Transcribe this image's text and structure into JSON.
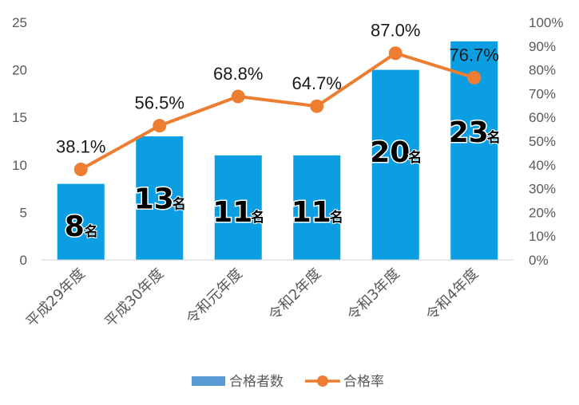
{
  "chart_data": {
    "type": "bar",
    "categories": [
      "平成29年度",
      "平成30年度",
      "令和元年度",
      "令和2年度",
      "令和3年度",
      "令和4年度"
    ],
    "series": [
      {
        "name": "合格者数",
        "type": "bar",
        "axis": "left",
        "values": [
          8,
          13,
          11,
          11,
          20,
          23
        ],
        "labels": [
          "8",
          "13",
          "11",
          "11",
          "20",
          "23"
        ],
        "unit": "名",
        "color": "#0B9EE3"
      },
      {
        "name": "合格率",
        "type": "line",
        "axis": "right",
        "values": [
          38.1,
          56.5,
          68.8,
          64.7,
          87.0,
          76.7
        ],
        "labels": [
          "38.1%",
          "56.5%",
          "68.8%",
          "64.7%",
          "87.0%",
          "76.7%"
        ],
        "color": "#ED7D31"
      }
    ],
    "y_left": {
      "min": 0,
      "max": 25,
      "ticks": [
        "0",
        "5",
        "10",
        "15",
        "20",
        "25"
      ]
    },
    "y_right": {
      "min": 0,
      "max": 100,
      "ticks": [
        "0%",
        "10%",
        "20%",
        "30%",
        "40%",
        "50%",
        "60%",
        "70%",
        "80%",
        "90%",
        "100%"
      ]
    },
    "grid": false,
    "legend": "bottom-center",
    "legend_items": [
      {
        "name": "合格者数",
        "marker": "bar",
        "color": "#5B9BD5"
      },
      {
        "name": "合格率",
        "marker": "line",
        "color": "#ED7D31"
      }
    ]
  }
}
